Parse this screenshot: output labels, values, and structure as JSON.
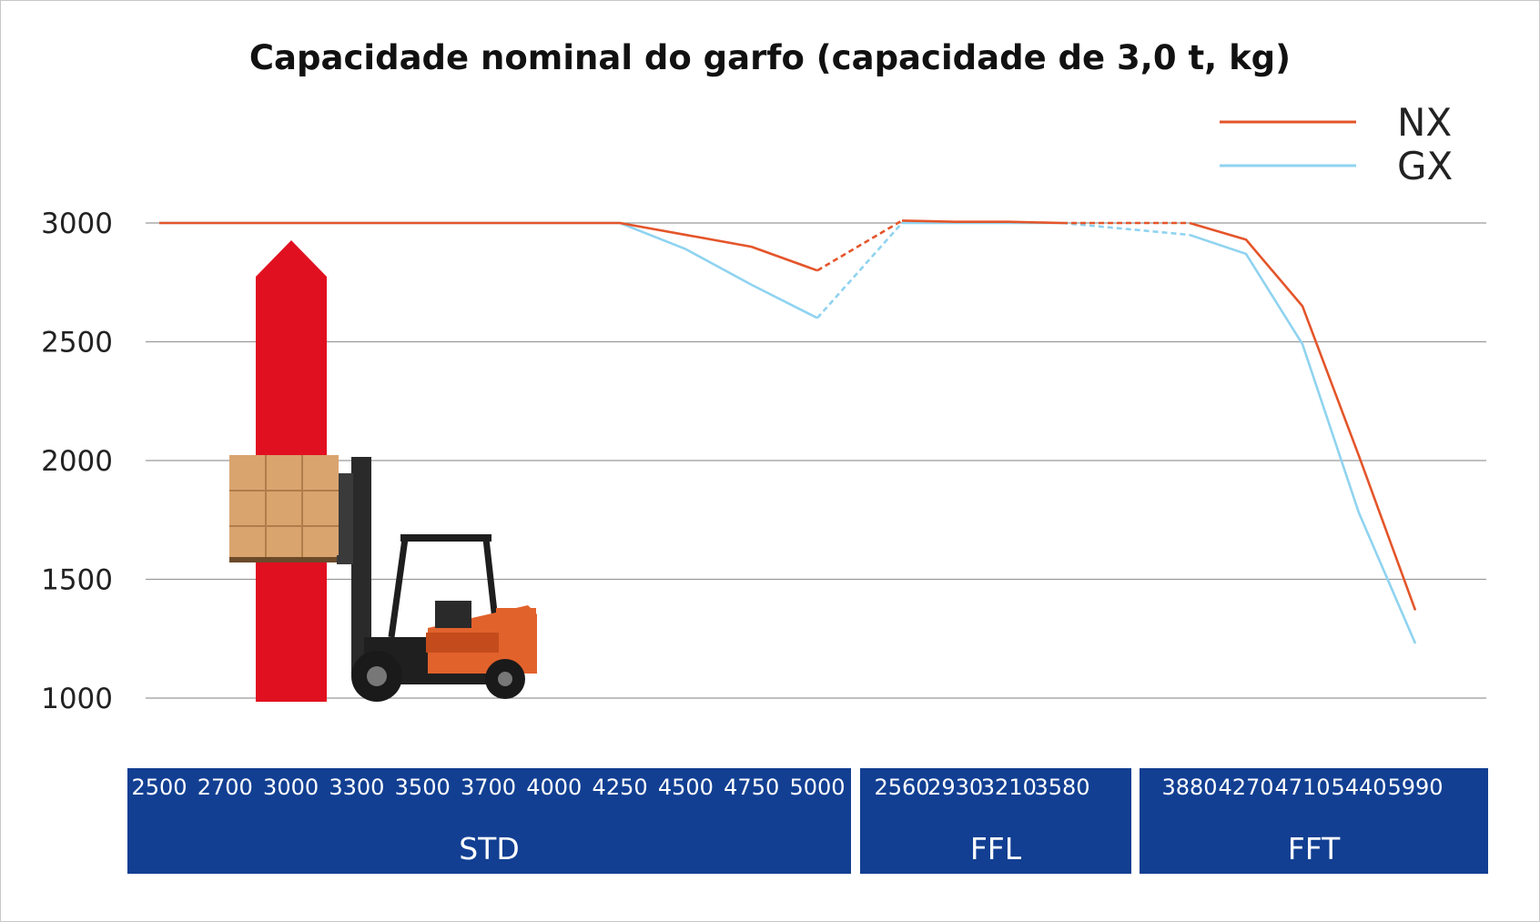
{
  "chart_data": {
    "type": "line",
    "title": "Capacidade nominal do garfo (capacidade de 3,0 t, kg)",
    "xlabel": "",
    "ylabel": "",
    "ylim": [
      1000,
      3000
    ],
    "yticks": [
      "3000",
      "2500",
      "2000",
      "1500",
      "1000"
    ],
    "grid": true,
    "legend_position": "top-right",
    "groups": [
      {
        "name": "STD",
        "categories": [
          "2500",
          "2700",
          "3000",
          "3300",
          "3500",
          "3700",
          "4000",
          "4250",
          "4500",
          "4750",
          "5000"
        ]
      },
      {
        "name": "FFL",
        "categories": [
          "2560",
          "2930",
          "3210",
          "3580"
        ]
      },
      {
        "name": "FFT",
        "categories": [
          "3880",
          "4270",
          "4710",
          "5440",
          "5990"
        ]
      }
    ],
    "series": [
      {
        "name": "NX",
        "color": "#e4552a",
        "values": [
          [
            3000,
            3000,
            3000,
            3000,
            3000,
            3000,
            3000,
            3000,
            2950,
            2900,
            2800
          ],
          [
            3010,
            3005,
            3005,
            3000
          ],
          [
            3000,
            2930,
            2650,
            2020,
            1370
          ]
        ]
      },
      {
        "name": "GX",
        "color": "#8fd3f0",
        "values": [
          [
            3000,
            3000,
            3000,
            3000,
            3000,
            3000,
            3000,
            3000,
            2890,
            2740,
            2600
          ],
          [
            3000,
            3000,
            3000,
            3000
          ],
          [
            2950,
            2870,
            2490,
            1780,
            1230
          ]
        ]
      }
    ]
  },
  "colors": {
    "category_bar": "#123f92",
    "arrow": "#e11020",
    "grid": "#9a9a9a"
  },
  "illustration": {
    "icon": "forklift-with-pallet-icon"
  }
}
